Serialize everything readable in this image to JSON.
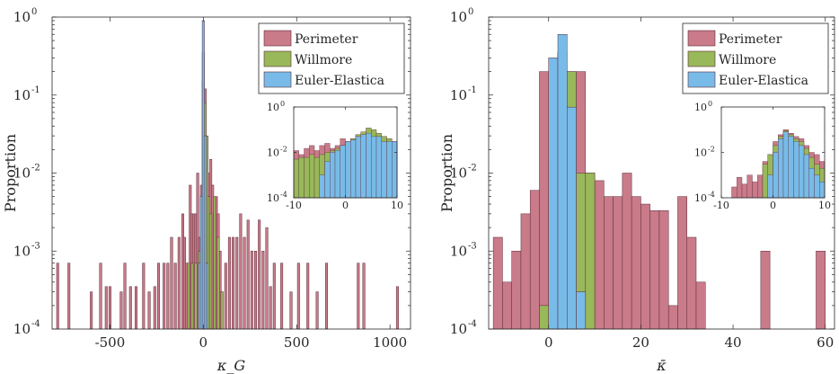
{
  "colors": {
    "perimeter": "#c97b8a",
    "willmore": "#98b85a",
    "euler": "#78bbe8",
    "edge": "#5b2a36"
  },
  "legend": [
    "Perimeter",
    "Willmore",
    "Euler-Elastica"
  ],
  "chart_data": [
    {
      "type": "bar",
      "yscale": "log",
      "xlabel": "κ_G",
      "ylabel": "Proportion",
      "xlim": [
        -810,
        1110
      ],
      "ylim": [
        0.0001,
        1
      ],
      "xticks": [
        "-500",
        "0",
        "500",
        "1000"
      ],
      "xtick_values": [
        -500,
        0,
        500,
        1000
      ],
      "yticks": [
        "10",
        "10",
        "10",
        "10",
        "10"
      ],
      "ytick_exps": [
        "-4",
        "-3",
        "-2",
        "-1",
        "0"
      ],
      "ytick_values": [
        0.0001,
        0.001,
        0.01,
        0.1,
        1
      ],
      "legend_position": "top-right",
      "bin_width": 12,
      "series": [
        {
          "key": "perimeter",
          "name": "Perimeter",
          "points": [
            [
              -780,
              0.0007
            ],
            [
              -720,
              0.0007
            ],
            [
              -600,
              0.0003
            ],
            [
              -550,
              0.0007
            ],
            [
              -520,
              0.00035
            ],
            [
              -500,
              0.00035
            ],
            [
              -440,
              0.0003
            ],
            [
              -420,
              0.0007
            ],
            [
              -390,
              0.00035
            ],
            [
              -360,
              0.00035
            ],
            [
              -320,
              0.0007
            ],
            [
              -290,
              0.0003
            ],
            [
              -260,
              0.00035
            ],
            [
              -240,
              0.0007
            ],
            [
              -210,
              0.0007
            ],
            [
              -190,
              0.0007
            ],
            [
              -170,
              0.0015
            ],
            [
              -150,
              0.0007
            ],
            [
              -130,
              0.0015
            ],
            [
              -110,
              0.003
            ],
            [
              -100,
              0.0015
            ],
            [
              -90,
              0.0007
            ],
            [
              -70,
              0.007
            ],
            [
              -60,
              0.003
            ],
            [
              -50,
              0.003
            ],
            [
              -40,
              0.003
            ],
            [
              -30,
              0.01
            ],
            [
              -20,
              0.0015
            ],
            [
              -10,
              0.007
            ],
            [
              0,
              0.35
            ],
            [
              10,
              0.12
            ],
            [
              20,
              0.005
            ],
            [
              30,
              0.01
            ],
            [
              40,
              0.015
            ],
            [
              50,
              0.007
            ],
            [
              60,
              0.003
            ],
            [
              70,
              0.005
            ],
            [
              80,
              0.003
            ],
            [
              90,
              0.001
            ],
            [
              100,
              0.0003
            ],
            [
              120,
              0.0007
            ],
            [
              140,
              0.0015
            ],
            [
              160,
              0.0015
            ],
            [
              180,
              0.0015
            ],
            [
              200,
              0.003
            ],
            [
              220,
              0.0015
            ],
            [
              240,
              0.0025
            ],
            [
              260,
              0.001
            ],
            [
              280,
              0.001
            ],
            [
              300,
              0.0025
            ],
            [
              320,
              0.001
            ],
            [
              340,
              0.002
            ],
            [
              360,
              0.00035
            ],
            [
              380,
              0.0007
            ],
            [
              420,
              0.0007
            ],
            [
              470,
              0.0003
            ],
            [
              510,
              0.0007
            ],
            [
              560,
              0.0007
            ],
            [
              610,
              0.0003
            ],
            [
              660,
              0.0007
            ],
            [
              830,
              0.0007
            ],
            [
              860,
              0.0007
            ],
            [
              1040,
              0.00035
            ]
          ]
        },
        {
          "key": "willmore",
          "name": "Willmore",
          "points": [
            [
              -80,
              0.0007
            ],
            [
              -60,
              0.0007
            ],
            [
              -40,
              0.0007
            ],
            [
              -20,
              0.001
            ],
            [
              0,
              0.15
            ],
            [
              10,
              0.08
            ],
            [
              20,
              0.03
            ],
            [
              30,
              0.005
            ],
            [
              40,
              0.003
            ],
            [
              60,
              0.005
            ],
            [
              80,
              0.0015
            ],
            [
              100,
              0.0003
            ]
          ]
        },
        {
          "key": "euler",
          "name": "Euler-Elastica",
          "points": [
            [
              -20,
              0.0007
            ],
            [
              -10,
              0.005
            ],
            [
              0,
              0.9
            ],
            [
              10,
              0.03
            ],
            [
              20,
              0.0007
            ]
          ]
        }
      ],
      "inset": {
        "xlim": [
          -10,
          10
        ],
        "ylim": [
          0.0001,
          1
        ],
        "xticks": [
          "-10",
          "0",
          "10"
        ],
        "xtick_values": [
          -10,
          0,
          10
        ],
        "yticks": [
          "10",
          "10",
          "10"
        ],
        "ytick_exps": [
          "-4",
          "-2",
          "0"
        ],
        "ytick_values": [
          0.0001,
          0.01,
          1
        ],
        "bin_width": 1,
        "series": [
          {
            "key": "perimeter",
            "points": [
              [
                -9.5,
                0.012
              ],
              [
                -8.5,
                0.008
              ],
              [
                -7.5,
                0.015
              ],
              [
                -6.5,
                0.02
              ],
              [
                -5.5,
                0.012
              ],
              [
                -4.5,
                0.02
              ],
              [
                -3.5,
                0.025
              ],
              [
                -2.5,
                0.015
              ],
              [
                -1.5,
                0.02
              ],
              [
                -0.5,
                0.04
              ],
              [
                0.5,
                0.03
              ],
              [
                1.5,
                0.04
              ],
              [
                2.5,
                0.06
              ],
              [
                3.5,
                0.08
              ],
              [
                4.5,
                0.1
              ],
              [
                5.5,
                0.08
              ],
              [
                6.5,
                0.06
              ],
              [
                7.5,
                0.05
              ],
              [
                8.5,
                0.04
              ],
              [
                9.5,
                0.03
              ]
            ]
          },
          {
            "key": "willmore",
            "points": [
              [
                -9.5,
                0.005
              ],
              [
                -8.5,
                0.006
              ],
              [
                -7.5,
                0.006
              ],
              [
                -6.5,
                0.008
              ],
              [
                -5.5,
                0.006
              ],
              [
                -4.5,
                0.008
              ],
              [
                -3.5,
                0.01
              ],
              [
                -2.5,
                0.012
              ],
              [
                -1.5,
                0.015
              ],
              [
                -0.5,
                0.02
              ],
              [
                0.5,
                0.03
              ],
              [
                1.5,
                0.04
              ],
              [
                2.5,
                0.06
              ],
              [
                3.5,
                0.08
              ],
              [
                4.5,
                0.12
              ],
              [
                5.5,
                0.1
              ],
              [
                6.5,
                0.07
              ],
              [
                7.5,
                0.05
              ],
              [
                8.5,
                0.04
              ],
              [
                9.5,
                0.03
              ]
            ]
          },
          {
            "key": "euler",
            "points": [
              [
                -4.5,
                0.001
              ],
              [
                -3.5,
                0.004
              ],
              [
                -2.5,
                0.01
              ],
              [
                -1.5,
                0.012
              ],
              [
                -0.5,
                0.02
              ],
              [
                0.5,
                0.03
              ],
              [
                1.5,
                0.035
              ],
              [
                2.5,
                0.05
              ],
              [
                3.5,
                0.06
              ],
              [
                4.5,
                0.07
              ],
              [
                5.5,
                0.05
              ],
              [
                6.5,
                0.05
              ],
              [
                7.5,
                0.03
              ],
              [
                8.5,
                0.03
              ],
              [
                9.5,
                0.03
              ]
            ]
          }
        ]
      }
    },
    {
      "type": "bar",
      "yscale": "log",
      "xlabel": "κ̄",
      "ylabel": "Proportion",
      "xlim": [
        -13,
        62
      ],
      "ylim": [
        0.0001,
        1
      ],
      "xticks": [
        "0",
        "20",
        "40",
        "60"
      ],
      "xtick_values": [
        0,
        20,
        40,
        60
      ],
      "yticks": [
        "10",
        "10",
        "10",
        "10",
        "10"
      ],
      "ytick_exps": [
        "-4",
        "-3",
        "-2",
        "-1",
        "0"
      ],
      "ytick_values": [
        0.0001,
        0.001,
        0.01,
        0.1,
        1
      ],
      "legend_position": "top-right",
      "bin_width": 2,
      "series": [
        {
          "key": "perimeter",
          "name": "Perimeter",
          "points": [
            [
              -11,
              0.0015
            ],
            [
              -9,
              0.0004
            ],
            [
              -7,
              0.001
            ],
            [
              -5,
              0.003
            ],
            [
              -3,
              0.006
            ],
            [
              -1,
              0.2
            ],
            [
              1,
              0.015
            ],
            [
              3,
              0.35
            ],
            [
              5,
              0.2
            ],
            [
              7,
              0.2
            ],
            [
              9,
              0.01
            ],
            [
              11,
              0.008
            ],
            [
              13,
              0.005
            ],
            [
              15,
              0.005
            ],
            [
              17,
              0.01
            ],
            [
              19,
              0.005
            ],
            [
              21,
              0.004
            ],
            [
              23,
              0.0033
            ],
            [
              25,
              0.0033
            ],
            [
              27,
              0.0002
            ],
            [
              29,
              0.005
            ],
            [
              31,
              0.0015
            ],
            [
              33,
              0.0004
            ],
            [
              47,
              0.001
            ],
            [
              59,
              0.001
            ]
          ]
        },
        {
          "key": "willmore",
          "name": "Willmore",
          "points": [
            [
              -1,
              0.0002
            ],
            [
              1,
              0.005
            ],
            [
              3,
              0.35
            ],
            [
              5,
              0.2
            ],
            [
              7,
              0.01
            ],
            [
              9,
              0.01
            ]
          ]
        },
        {
          "key": "euler",
          "name": "Euler-Elastica",
          "points": [
            [
              1,
              0.3
            ],
            [
              3,
              0.6
            ],
            [
              5,
              0.07
            ],
            [
              7,
              0.0003
            ]
          ]
        }
      ],
      "inset": {
        "xlim": [
          -10,
          10
        ],
        "ylim": [
          0.0001,
          1
        ],
        "xticks": [
          "-10",
          "0",
          "10"
        ],
        "xtick_values": [
          -10,
          0,
          10
        ],
        "yticks": [
          "10",
          "10",
          "10"
        ],
        "ytick_exps": [
          "-4",
          "-2",
          "0"
        ],
        "ytick_values": [
          0.0001,
          0.01,
          1
        ],
        "bin_width": 1,
        "series": [
          {
            "key": "perimeter",
            "points": [
              [
                -7.5,
                0.0003
              ],
              [
                -6.5,
                0.0008
              ],
              [
                -5.5,
                0.0004
              ],
              [
                -4.5,
                0.001
              ],
              [
                -3.5,
                0.0005
              ],
              [
                -2.5,
                0.001
              ],
              [
                -1.5,
                0.004
              ],
              [
                -0.5,
                0.008
              ],
              [
                0.5,
                0.03
              ],
              [
                1.5,
                0.06
              ],
              [
                2.5,
                0.1
              ],
              [
                3.5,
                0.07
              ],
              [
                4.5,
                0.05
              ],
              [
                5.5,
                0.04
              ],
              [
                6.5,
                0.02
              ],
              [
                7.5,
                0.01
              ],
              [
                8.5,
                0.008
              ],
              [
                9.5,
                0.004
              ]
            ]
          },
          {
            "key": "willmore",
            "points": [
              [
                -1.5,
                0.003
              ],
              [
                -0.5,
                0.008
              ],
              [
                0.5,
                0.02
              ],
              [
                1.5,
                0.05
              ],
              [
                2.5,
                0.09
              ],
              [
                3.5,
                0.06
              ],
              [
                4.5,
                0.04
              ],
              [
                5.5,
                0.03
              ],
              [
                6.5,
                0.015
              ],
              [
                7.5,
                0.006
              ],
              [
                8.5,
                0.003
              ],
              [
                9.5,
                0.002
              ]
            ]
          },
          {
            "key": "euler",
            "points": [
              [
                -0.5,
                0.001
              ],
              [
                0.5,
                0.01
              ],
              [
                1.5,
                0.04
              ],
              [
                2.5,
                0.08
              ],
              [
                3.5,
                0.05
              ],
              [
                4.5,
                0.03
              ],
              [
                5.5,
                0.02
              ],
              [
                6.5,
                0.008
              ],
              [
                7.5,
                0.002
              ],
              [
                8.5,
                0.001
              ],
              [
                9.5,
                0.0005
              ]
            ]
          }
        ]
      }
    }
  ]
}
